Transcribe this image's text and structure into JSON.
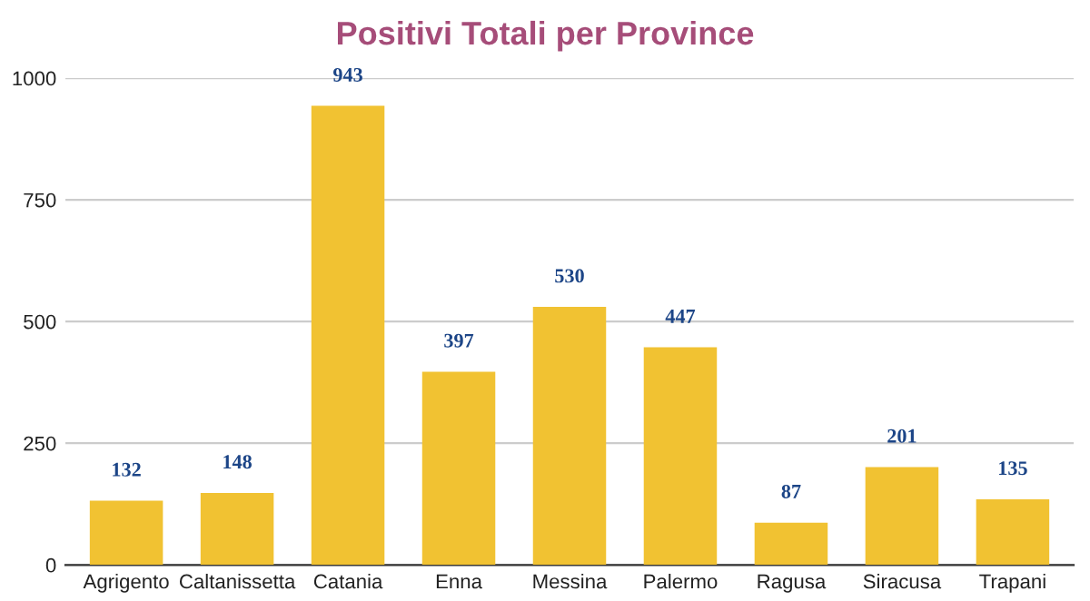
{
  "chart_data": {
    "type": "bar",
    "title": "Positivi Totali per Province",
    "categories": [
      "Agrigento",
      "Caltanissetta",
      "Catania",
      "Enna",
      "Messina",
      "Palermo",
      "Ragusa",
      "Siracusa",
      "Trapani"
    ],
    "values": [
      132,
      148,
      943,
      397,
      530,
      447,
      87,
      201,
      135
    ],
    "color": "#f1c232",
    "ylim": [
      0,
      1000
    ],
    "yticks": [
      0,
      250,
      500,
      750,
      1000
    ],
    "grid": "y",
    "data_labels": true,
    "legend": false
  }
}
